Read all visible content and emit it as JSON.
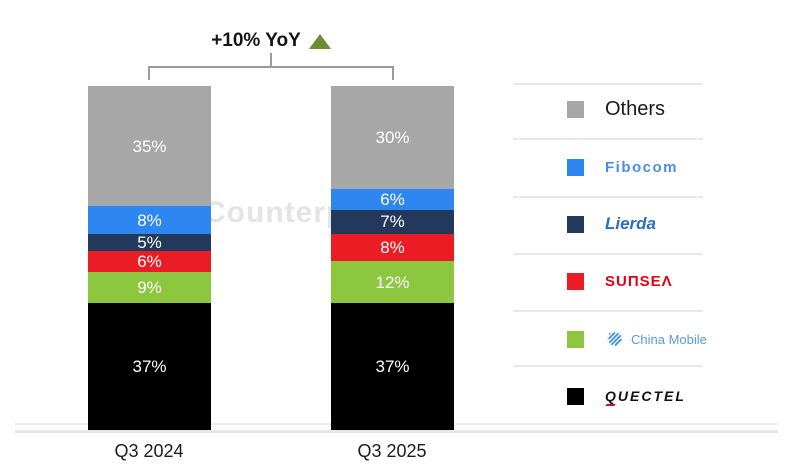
{
  "watermark": "Counterpoint",
  "annotation": {
    "label": "+10% YoY",
    "triangle_color": "#6d8c35"
  },
  "chart_data": {
    "type": "stacked-bar",
    "title": "+10% YoY",
    "categories": [
      "Q3 2024",
      "Q3 2025"
    ],
    "unit": "%",
    "ylim": [
      0,
      100
    ],
    "grid": false,
    "legend_position": "right",
    "stack_order": "top-to-bottom",
    "series": [
      {
        "name": "Others",
        "color": "#a7a7a7",
        "values": [
          35,
          30
        ]
      },
      {
        "name": "Fibocom",
        "color": "#2e86f0",
        "values": [
          8,
          6
        ]
      },
      {
        "name": "Lierda",
        "color": "#22395c",
        "values": [
          5,
          7
        ]
      },
      {
        "name": "Sunsea",
        "color": "#ec1c24",
        "values": [
          6,
          8
        ]
      },
      {
        "name": "China Mobile",
        "color": "#8dc63f",
        "values": [
          9,
          12
        ]
      },
      {
        "name": "Quectel",
        "color": "#000000",
        "values": [
          37,
          37
        ]
      }
    ]
  },
  "legend": {
    "items": [
      {
        "name": "Others",
        "display": "Others",
        "color": "#a7a7a7"
      },
      {
        "name": "Fibocom",
        "display": "Fibocom",
        "color": "#2e86f0"
      },
      {
        "name": "Lierda",
        "display": "Lierda",
        "color": "#22395c"
      },
      {
        "name": "Sunsea",
        "display": "SUΠSEΛ",
        "color": "#ec1c24"
      },
      {
        "name": "China Mobile",
        "display": "China Mobile",
        "color": "#8dc63f"
      },
      {
        "name": "Quectel",
        "display": "QUECTEL",
        "color": "#000000"
      }
    ]
  }
}
